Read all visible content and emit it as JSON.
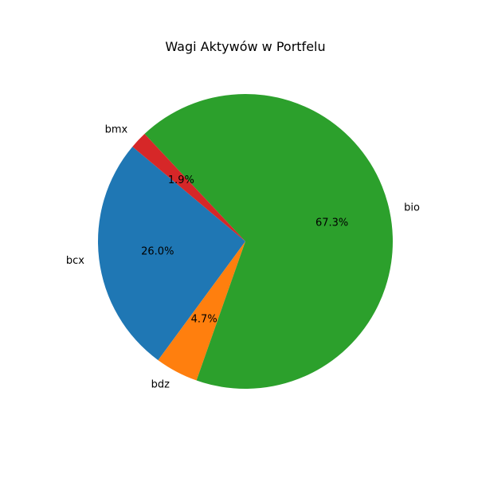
{
  "chart_data": {
    "type": "pie",
    "title": "Wagi Aktywów w Portfelu",
    "slices": [
      {
        "label": "bcx",
        "value": 26.0,
        "pct_text": "26.0%",
        "color": "#1f77b4"
      },
      {
        "label": "bdz",
        "value": 4.7,
        "pct_text": "4.7%",
        "color": "#ff7f0e"
      },
      {
        "label": "bio",
        "value": 67.3,
        "pct_text": "67.3%",
        "color": "#2ca02c"
      },
      {
        "label": "bmx",
        "value": 1.9,
        "pct_text": "1.9%",
        "color": "#d62728"
      }
    ],
    "start_angle_deg": 140,
    "direction": "counterclockwise"
  }
}
